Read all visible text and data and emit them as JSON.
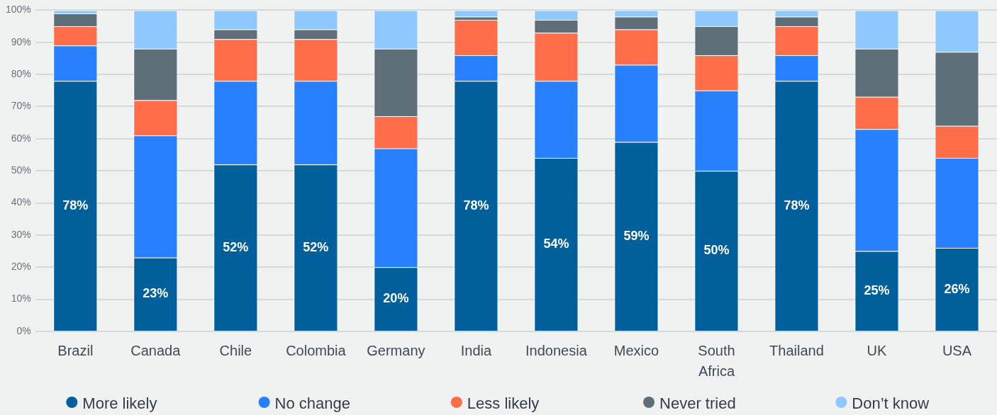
{
  "chart_data": {
    "type": "bar",
    "stacked": true,
    "categories": [
      "Brazil",
      "Canada",
      "Chile",
      "Colombia",
      "Germany",
      "India",
      "Indonesia",
      "Mexico",
      "South Africa",
      "Thailand",
      "UK",
      "USA"
    ],
    "series": [
      {
        "name": "More likely",
        "color": "#015f9c",
        "values": [
          78,
          23,
          52,
          52,
          20,
          78,
          54,
          59,
          50,
          78,
          25,
          26
        ],
        "value_labels": [
          "78%",
          "23%",
          "52%",
          "52%",
          "20%",
          "78%",
          "54%",
          "59%",
          "50%",
          "78%",
          "25%",
          "26%"
        ]
      },
      {
        "name": "No change",
        "color": "#2880ff",
        "values": [
          11,
          38,
          26,
          26,
          37,
          8,
          24,
          24,
          25,
          8,
          38,
          28
        ]
      },
      {
        "name": "Less likely",
        "color": "#ff6e4a",
        "values": [
          6,
          11,
          13,
          13,
          10,
          11,
          15,
          11,
          11,
          9,
          10,
          10
        ]
      },
      {
        "name": "Never tried",
        "color": "#5e6f79",
        "values": [
          4,
          16,
          3,
          3,
          21,
          1,
          4,
          4,
          9,
          3,
          15,
          23
        ]
      },
      {
        "name": "Don’t know",
        "color": "#8ec8ff",
        "values": [
          1,
          12,
          6,
          6,
          12,
          2,
          3,
          2,
          5,
          2,
          12,
          13
        ]
      }
    ],
    "ylim": [
      0,
      100
    ],
    "yticks": [
      {
        "value": 0,
        "label": "0%"
      },
      {
        "value": 10,
        "label": "10%"
      },
      {
        "value": 20,
        "label": "20%"
      },
      {
        "value": 30,
        "label": "30%"
      },
      {
        "value": 40,
        "label": "40%"
      },
      {
        "value": 50,
        "label": "50%"
      },
      {
        "value": 60,
        "label": "60%"
      },
      {
        "value": 70,
        "label": "70%"
      },
      {
        "value": 80,
        "label": "80%"
      },
      {
        "value": 90,
        "label": "90%"
      },
      {
        "value": 100,
        "label": "100%"
      }
    ],
    "grid": "y",
    "legend": "bottom"
  }
}
